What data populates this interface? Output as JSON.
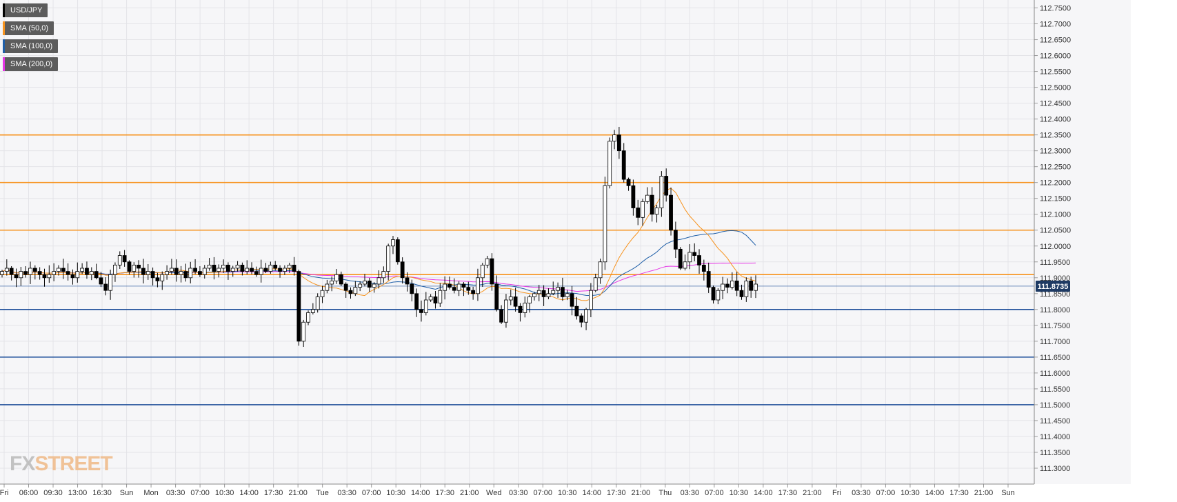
{
  "chart_data": {
    "type": "candlestick",
    "symbol": "USD/JPY",
    "legend": [
      {
        "label": "USD/JPY",
        "color": "#000000"
      },
      {
        "label": "SMA (50,0)",
        "color": "#f7931e"
      },
      {
        "label": "SMA (100,0)",
        "color": "#1f5fa8"
      },
      {
        "label": "SMA (200,0)",
        "color": "#e535e5"
      }
    ],
    "ylim": [
      111.25,
      112.775
    ],
    "y_ticks": [
      "112.7500",
      "112.7000",
      "112.6500",
      "112.6000",
      "112.5500",
      "112.5000",
      "112.4500",
      "112.4000",
      "112.3500",
      "112.3000",
      "112.2500",
      "112.2000",
      "112.1500",
      "112.1000",
      "112.0500",
      "112.0000",
      "111.9500",
      "111.9000",
      "111.8500",
      "111.8000",
      "111.7500",
      "111.7000",
      "111.6500",
      "111.6000",
      "111.5500",
      "111.5000",
      "111.4500",
      "111.4000",
      "111.3500",
      "111.3000"
    ],
    "x_labels": [
      "Fri",
      "06:00",
      "09:30",
      "13:00",
      "16:30",
      "Sun",
      "Mon",
      "03:30",
      "07:00",
      "10:30",
      "14:00",
      "17:30",
      "21:00",
      "Tue",
      "03:30",
      "07:00",
      "10:30",
      "14:00",
      "17:30",
      "21:00",
      "Wed",
      "03:30",
      "07:00",
      "10:30",
      "14:00",
      "17:30",
      "21:00",
      "Thu",
      "03:30",
      "07:00",
      "10:30",
      "14:00",
      "17:30",
      "21:00",
      "Fri",
      "03:30",
      "07:00",
      "10:30",
      "14:00",
      "17:30",
      "21:00",
      "Sun"
    ],
    "current_price": {
      "value": 111.8735,
      "label": "111.8735"
    },
    "resistance_levels": [
      112.35,
      112.2,
      112.05,
      111.91
    ],
    "support_levels": [
      111.8,
      111.65,
      111.5
    ],
    "candles_anchor_series": [
      111.92,
      111.93,
      111.91,
      111.9,
      111.92,
      111.91,
      111.93,
      111.92,
      111.91,
      111.9,
      111.91,
      111.92,
      111.93,
      111.92,
      111.91,
      111.9,
      111.92,
      111.93,
      111.91,
      111.92,
      111.9,
      111.88,
      111.86,
      111.91,
      111.94,
      111.97,
      111.95,
      111.92,
      111.94,
      111.93,
      111.91,
      111.92,
      111.9,
      111.89,
      111.91,
      111.92,
      111.93,
      111.91,
      111.92,
      111.9,
      111.93,
      111.92,
      111.91,
      111.93,
      111.94,
      111.92,
      111.93,
      111.94,
      111.92,
      111.93,
      111.94,
      111.92,
      111.93,
      111.92,
      111.91,
      111.93,
      111.92,
      111.94,
      111.93,
      111.92,
      111.93,
      111.94,
      111.92,
      111.7,
      111.76,
      111.79,
      111.8,
      111.84,
      111.86,
      111.88,
      111.89,
      111.91,
      111.88,
      111.86,
      111.85,
      111.87,
      111.88,
      111.89,
      111.87,
      111.88,
      111.9,
      111.92,
      112.0,
      112.02,
      111.95,
      111.9,
      111.88,
      111.85,
      111.8,
      111.79,
      111.83,
      111.84,
      111.82,
      111.86,
      111.88,
      111.87,
      111.86,
      111.88,
      111.87,
      111.86,
      111.85,
      111.9,
      111.94,
      111.96,
      111.88,
      111.8,
      111.76,
      111.83,
      111.84,
      111.81,
      111.79,
      111.82,
      111.84,
      111.85,
      111.86,
      111.84,
      111.85,
      111.86,
      111.87,
      111.84,
      111.85,
      111.81,
      111.78,
      111.76,
      111.8,
      111.86,
      111.9,
      111.95,
      112.19,
      112.33,
      112.35,
      112.3,
      112.21,
      112.19,
      112.12,
      112.09,
      112.14,
      112.16,
      112.1,
      112.12,
      112.22,
      112.16,
      112.05,
      111.99,
      111.93,
      111.95,
      111.98,
      111.97,
      111.94,
      111.92,
      111.87,
      111.83,
      111.86,
      111.88,
      111.87,
      111.89,
      111.86,
      111.84,
      111.89,
      111.86,
      111.88
    ]
  },
  "logo": {
    "fx": "FX",
    "street": "STREET"
  }
}
